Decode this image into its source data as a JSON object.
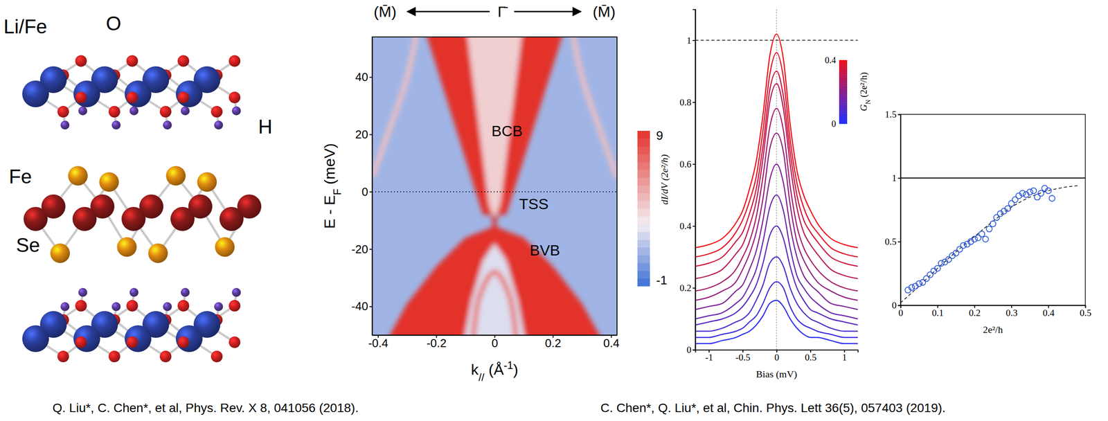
{
  "chart_data": [
    {
      "type": "band_map",
      "title": [
        "(M̄)",
        "Γ̄",
        "(M̄)"
      ],
      "xlabel": [
        "k",
        "//",
        " (Å",
        "-1",
        ")"
      ],
      "ylabel": [
        "E - E",
        "F",
        " (meV)"
      ],
      "xlim": [
        -0.42,
        0.42
      ],
      "xticks": [
        -0.4,
        -0.2,
        0,
        0.2,
        0.4
      ],
      "ylim": [
        -50,
        54
      ],
      "yticks": [
        -40,
        -20,
        0,
        20,
        40
      ],
      "background": 1.2,
      "regions": [
        {
          "intensity": 9,
          "k": [
            -0.42,
            -0.36,
            -0.3,
            -0.2,
            -0.1,
            0,
            0.1,
            0.2,
            0.3,
            0.36,
            0.42
          ],
          "E": [
            -60,
            -50,
            -39,
            -26,
            -16,
            -12,
            -16,
            -26,
            -39,
            -50,
            -60
          ]
        },
        {
          "intensity": 2.5,
          "k": [
            -0.12,
            -0.08,
            -0.04,
            0,
            0.04,
            0.08,
            0.12
          ],
          "E": [
            -60,
            -38,
            -24,
            -18,
            -24,
            -38,
            -60
          ]
        },
        {
          "intensity": 9,
          "k": [
            -0.25,
            -0.1,
            -0.015,
            -0.04
          ],
          "E": [
            60,
            60,
            -8,
            -8
          ]
        },
        {
          "intensity": 9,
          "k": [
            0.1,
            0.25,
            0.04,
            0.015
          ],
          "E": [
            60,
            60,
            -8,
            -8
          ]
        },
        {
          "intensity": 4,
          "k": [
            -0.1,
            0.1,
            0.015,
            -0.015
          ],
          "E": [
            60,
            60,
            -8,
            -8
          ]
        }
      ],
      "bands": [
        {
          "intensity": 9,
          "k": [
            -0.07,
            0.07
          ],
          "E": [
            -30,
            8
          ]
        },
        {
          "intensity": 9,
          "k": [
            0.07,
            -0.07
          ],
          "E": [
            -30,
            8
          ]
        },
        {
          "intensity": 7,
          "k": [
            -0.08,
            -0.05,
            0,
            0.05,
            0.08
          ],
          "E": [
            -60,
            -36,
            -28,
            -36,
            -60
          ]
        },
        {
          "intensity": 4.5,
          "k": [
            -0.42,
            -0.36,
            -0.3,
            -0.26
          ],
          "E": [
            5,
            22,
            40,
            60
          ]
        },
        {
          "intensity": 4.5,
          "k": [
            0.42,
            0.36,
            0.3,
            0.26
          ],
          "E": [
            5,
            22,
            40,
            60
          ]
        }
      ],
      "hline": 0,
      "annotations": [
        "BCB",
        "TSS",
        "BVB"
      ],
      "colorbar": {
        "clim": [
          -1,
          9
        ],
        "cticks": [
          9,
          -1
        ]
      }
    },
    {
      "type": "line",
      "xlabel": "Bias (mV)",
      "ylabel": "dI/dV (2e²/h)",
      "xlim": [
        -1.2,
        1.2
      ],
      "xticks": [
        -1,
        -0.5,
        0,
        0.5,
        1
      ],
      "ylim": [
        0,
        1.1
      ],
      "yticks": [
        0,
        0.2,
        0.4,
        0.6,
        0.8,
        1
      ],
      "hline": 1,
      "vline": 0,
      "x": [
        -1.2,
        -1.0,
        -0.8,
        -0.6,
        -0.5,
        -0.4,
        -0.3,
        -0.2,
        -0.1,
        0,
        0.1,
        0.2,
        0.3,
        0.4,
        0.5,
        0.6,
        0.8,
        1.0,
        1.2
      ],
      "series": [
        {
          "G_N": 0.02,
          "values": [
            0.02,
            0.02,
            0.03,
            0.04,
            0.05,
            0.06,
            0.08,
            0.11,
            0.15,
            0.16,
            0.14,
            0.1,
            0.07,
            0.05,
            0.04,
            0.04,
            0.03,
            0.02,
            0.02
          ]
        },
        {
          "G_N": 0.05,
          "values": [
            0.04,
            0.04,
            0.05,
            0.06,
            0.07,
            0.09,
            0.11,
            0.15,
            0.2,
            0.22,
            0.2,
            0.14,
            0.1,
            0.08,
            0.07,
            0.06,
            0.05,
            0.04,
            0.04
          ]
        },
        {
          "G_N": 0.08,
          "values": [
            0.06,
            0.06,
            0.07,
            0.09,
            0.1,
            0.12,
            0.16,
            0.21,
            0.28,
            0.3,
            0.27,
            0.2,
            0.15,
            0.12,
            0.1,
            0.09,
            0.07,
            0.06,
            0.06
          ]
        },
        {
          "G_N": 0.11,
          "values": [
            0.08,
            0.09,
            0.1,
            0.12,
            0.14,
            0.17,
            0.21,
            0.28,
            0.37,
            0.4,
            0.36,
            0.27,
            0.2,
            0.16,
            0.13,
            0.12,
            0.1,
            0.09,
            0.08
          ]
        },
        {
          "G_N": 0.14,
          "values": [
            0.1,
            0.11,
            0.12,
            0.15,
            0.17,
            0.21,
            0.26,
            0.35,
            0.46,
            0.5,
            0.45,
            0.33,
            0.24,
            0.2,
            0.17,
            0.15,
            0.12,
            0.11,
            0.1
          ]
        },
        {
          "G_N": 0.18,
          "values": [
            0.13,
            0.14,
            0.15,
            0.19,
            0.21,
            0.26,
            0.32,
            0.42,
            0.55,
            0.6,
            0.54,
            0.4,
            0.3,
            0.24,
            0.21,
            0.19,
            0.15,
            0.14,
            0.13
          ]
        },
        {
          "G_N": 0.22,
          "values": [
            0.16,
            0.17,
            0.19,
            0.22,
            0.26,
            0.31,
            0.38,
            0.49,
            0.65,
            0.7,
            0.64,
            0.47,
            0.35,
            0.29,
            0.25,
            0.22,
            0.19,
            0.17,
            0.16
          ]
        },
        {
          "G_N": 0.26,
          "values": [
            0.19,
            0.2,
            0.22,
            0.26,
            0.3,
            0.35,
            0.43,
            0.56,
            0.72,
            0.78,
            0.71,
            0.53,
            0.4,
            0.33,
            0.29,
            0.26,
            0.22,
            0.2,
            0.19
          ]
        },
        {
          "G_N": 0.3,
          "values": [
            0.23,
            0.24,
            0.26,
            0.31,
            0.34,
            0.4,
            0.48,
            0.62,
            0.8,
            0.86,
            0.78,
            0.6,
            0.46,
            0.38,
            0.34,
            0.31,
            0.26,
            0.24,
            0.23
          ]
        },
        {
          "G_N": 0.34,
          "values": [
            0.27,
            0.28,
            0.3,
            0.35,
            0.38,
            0.44,
            0.52,
            0.66,
            0.84,
            0.9,
            0.82,
            0.64,
            0.5,
            0.42,
            0.38,
            0.35,
            0.3,
            0.28,
            0.27
          ]
        },
        {
          "G_N": 0.38,
          "values": [
            0.3,
            0.31,
            0.33,
            0.38,
            0.42,
            0.48,
            0.56,
            0.71,
            0.89,
            0.96,
            0.88,
            0.68,
            0.54,
            0.46,
            0.41,
            0.38,
            0.33,
            0.31,
            0.3
          ]
        },
        {
          "G_N": 0.41,
          "values": [
            0.33,
            0.34,
            0.36,
            0.41,
            0.45,
            0.52,
            0.61,
            0.76,
            0.95,
            1.02,
            0.94,
            0.73,
            0.58,
            0.5,
            0.45,
            0.41,
            0.36,
            0.34,
            0.33
          ]
        }
      ],
      "colorbar": {
        "title": [
          "G",
          "N",
          " (2e²/h)"
        ],
        "clim": [
          0,
          0.4
        ],
        "cticks": [
          0,
          0.4
        ]
      }
    },
    {
      "type": "scatter",
      "xlabel": "2e²/h",
      "xlim": [
        0,
        0.5
      ],
      "xticks": [
        0,
        0.1,
        0.2,
        0.3,
        0.4,
        0.5
      ],
      "ylim": [
        0,
        1.5
      ],
      "yticks": [
        0,
        0.5,
        1,
        1.5
      ],
      "marker": "circle",
      "x": [
        0.02,
        0.03,
        0.04,
        0.05,
        0.06,
        0.07,
        0.08,
        0.09,
        0.1,
        0.11,
        0.12,
        0.13,
        0.14,
        0.15,
        0.16,
        0.17,
        0.18,
        0.19,
        0.2,
        0.21,
        0.22,
        0.23,
        0.24,
        0.25,
        0.26,
        0.27,
        0.28,
        0.29,
        0.3,
        0.31,
        0.32,
        0.33,
        0.34,
        0.35,
        0.36,
        0.37,
        0.38,
        0.39,
        0.4,
        0.41
      ],
      "values": [
        0.12,
        0.14,
        0.15,
        0.17,
        0.18,
        0.21,
        0.24,
        0.27,
        0.29,
        0.33,
        0.34,
        0.36,
        0.39,
        0.41,
        0.44,
        0.47,
        0.48,
        0.5,
        0.52,
        0.53,
        0.56,
        0.52,
        0.6,
        0.64,
        0.69,
        0.72,
        0.74,
        0.76,
        0.8,
        0.83,
        0.86,
        0.88,
        0.87,
        0.89,
        0.9,
        0.85,
        0.88,
        0.92,
        0.9,
        0.84
      ],
      "fit": {
        "x": [
          0,
          0.05,
          0.1,
          0.15,
          0.2,
          0.25,
          0.3,
          0.35,
          0.4,
          0.45,
          0.48
        ],
        "values": [
          0.02,
          0.15,
          0.29,
          0.42,
          0.54,
          0.66,
          0.77,
          0.85,
          0.9,
          0.93,
          0.94
        ],
        "line_style": "dashed"
      },
      "hline": 1
    }
  ],
  "diagram": {
    "labels": [
      "Li/Fe",
      "O",
      "Fe",
      "Se",
      "H"
    ]
  },
  "citations": [
    "Q. Liu*, C. Chen*, et al, Phys. Rev. X 8, 041056 (2018).",
    "C. Chen*, Q. Liu*, et al, Chin. Phys. Lett 36(5), 057403 (2019)."
  ]
}
